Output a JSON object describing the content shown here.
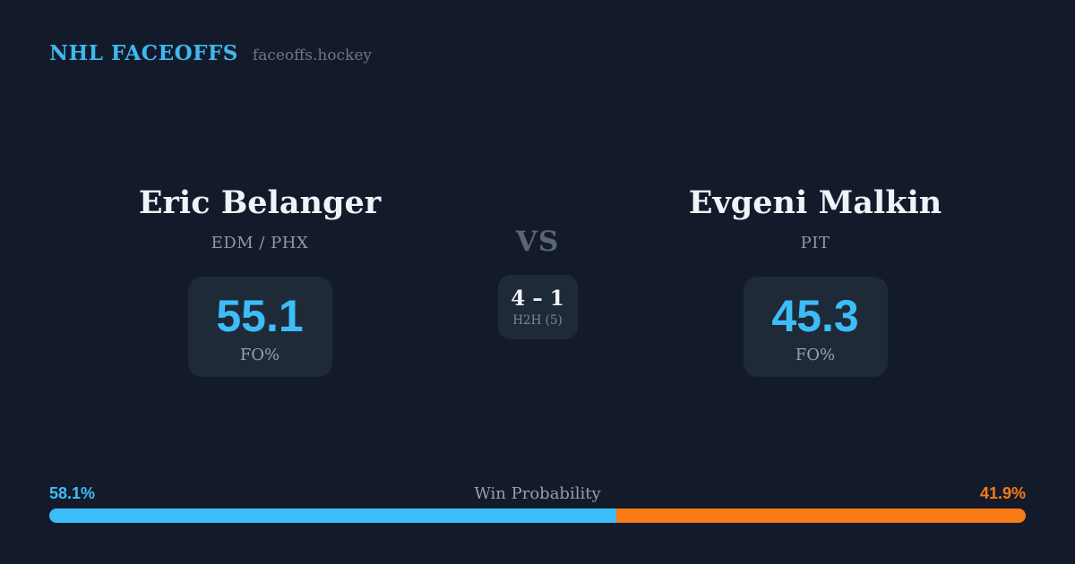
{
  "header": {
    "brand": "NHL FACEOFFS",
    "site": "faceoffs.hockey"
  },
  "matchup": {
    "vs_label": "VS",
    "h2h": {
      "score": "4 – 1",
      "label": "H2H (5)"
    },
    "players": [
      {
        "name": "Eric Belanger",
        "team": "EDM / PHX",
        "stat_value": "55.1",
        "stat_label": "FO%"
      },
      {
        "name": "Evgeni Malkin",
        "team": "PIT",
        "stat_value": "45.3",
        "stat_label": "FO%"
      }
    ]
  },
  "win_probability": {
    "title": "Win Probability",
    "left_pct_text": "58.1%",
    "right_pct_text": "41.9%",
    "left_value": 58.1,
    "right_value": 41.9
  },
  "colors": {
    "background": "#131b2b",
    "card": "#1f2a39",
    "accent_blue": "#3dbdf8",
    "accent_orange": "#f97b16",
    "brand_blue": "#3fb7ef",
    "text_primary": "#f0f4f8",
    "text_muted": "#8e98a9"
  }
}
